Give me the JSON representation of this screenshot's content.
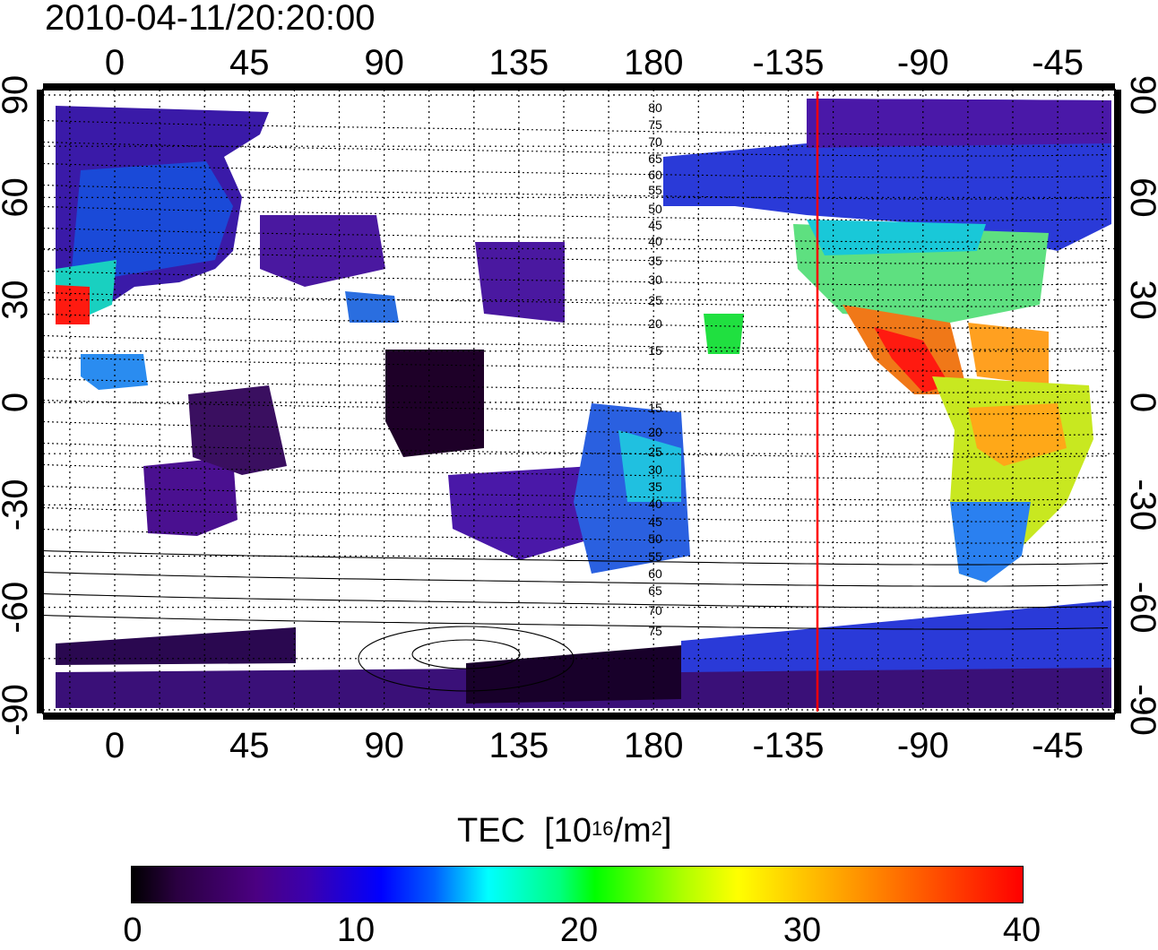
{
  "title": "2010-04-11/20:20:00",
  "map": {
    "lon_ticks_top": [
      "0",
      "45",
      "90",
      "135",
      "180",
      "-135",
      "-90",
      "-45"
    ],
    "lon_ticks_bottom": [
      "0",
      "45",
      "90",
      "135",
      "180",
      "-135",
      "-90",
      "-45"
    ],
    "lat_ticks_left": [
      "90",
      "60",
      "30",
      "0",
      "-30",
      "-60",
      "-90"
    ],
    "lat_ticks_right": [
      "90",
      "60",
      "30",
      "0",
      "-30",
      "-60",
      "-90"
    ],
    "maglat_labels": [
      "80",
      "75",
      "70",
      "65",
      "60",
      "55",
      "50",
      "45",
      "40",
      "35",
      "30",
      "25",
      "20",
      "15",
      "15",
      "20",
      "25",
      "30",
      "35",
      "40",
      "45",
      "50",
      "55",
      "60",
      "65",
      "70",
      "75"
    ],
    "sunline_color": "#ff0000",
    "sunline_lon": -120
  },
  "colorbar": {
    "title": "TEC",
    "unit_prefix": "[10",
    "unit_exp": "16",
    "unit_mid": "/m",
    "unit_exp2": "2",
    "unit_suffix": "]",
    "min": 0,
    "max": 40,
    "ticks": [
      "0",
      "10",
      "20",
      "30",
      "40"
    ]
  }
}
